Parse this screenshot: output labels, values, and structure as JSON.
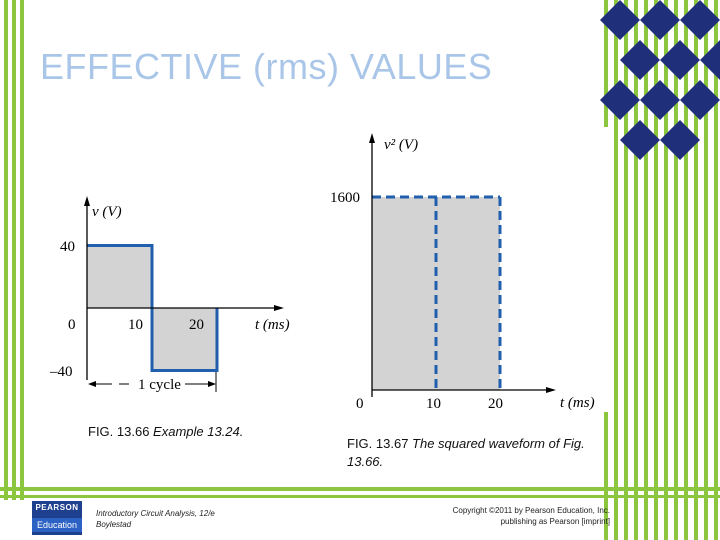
{
  "slide": {
    "title": "EFFECTIVE (rms) VALUES"
  },
  "fig1": {
    "number": "FIG. 13.66",
    "caption": "Example 13.24.",
    "ylabel": "v (V)",
    "xlabel": "t (ms)",
    "y_ticks": [
      "40",
      "0",
      "–40"
    ],
    "x_ticks": [
      "10",
      "20"
    ],
    "cycle_label": "1 cycle",
    "segments": [
      {
        "t_start": 0,
        "t_end": 10,
        "v": 40
      },
      {
        "t_start": 10,
        "t_end": 20,
        "v": -40
      }
    ]
  },
  "fig2": {
    "number": "FIG. 13.67",
    "caption": "The squared waveform of Fig. 13.66.",
    "ylabel": "v² (V)",
    "xlabel": "t (ms)",
    "y_ticks": [
      "1600"
    ],
    "x_ticks": [
      "0",
      "10",
      "20"
    ],
    "segments": [
      {
        "t_start": 0,
        "t_end": 10,
        "v2": 1600
      },
      {
        "t_start": 10,
        "t_end": 20,
        "v2": 1600
      }
    ]
  },
  "footer": {
    "book_line1": "Introductory Circuit Analysis, 12/e",
    "book_line2": "Boylestad",
    "copyright_line1": "Copyright ©2011 by Pearson Education, Inc.",
    "copyright_line2": "publishing as Pearson [imprint]",
    "logo_top": "PEARSON",
    "logo_bottom": "Education"
  },
  "colors": {
    "accent_green": "#8cc63f",
    "title_blue": "#a9c6e8",
    "wave_blue": "#1f5fae",
    "fill_gray": "#d3d3d3",
    "diamond_navy": "#1f2f7a"
  }
}
